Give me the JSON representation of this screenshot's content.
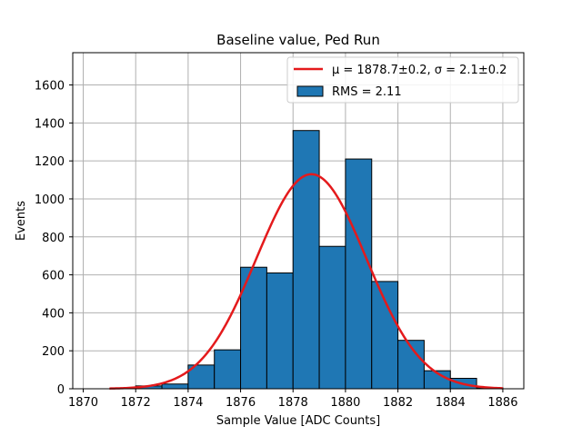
{
  "chart_data": {
    "type": "histogram",
    "title": "Baseline value, Ped Run",
    "xlabel": "Sample Value [ADC Counts]",
    "ylabel": "Events",
    "xlim": [
      1869.6,
      1886.8
    ],
    "ylim": [
      0,
      1770
    ],
    "grid": true,
    "x_ticks": [
      1870,
      1872,
      1874,
      1876,
      1878,
      1880,
      1882,
      1884,
      1886
    ],
    "y_ticks": [
      0,
      200,
      400,
      600,
      800,
      1000,
      1200,
      1400,
      1600
    ],
    "bar_color": "#1f77b4",
    "bar_edge_color": "#000000",
    "bins": [
      {
        "x0": 1872.0,
        "x1": 1873.0,
        "value": 15
      },
      {
        "x0": 1873.0,
        "x1": 1874.0,
        "value": 25
      },
      {
        "x0": 1874.0,
        "x1": 1875.0,
        "value": 125
      },
      {
        "x0": 1875.0,
        "x1": 1876.0,
        "value": 205
      },
      {
        "x0": 1876.0,
        "x1": 1877.0,
        "value": 640
      },
      {
        "x0": 1877.0,
        "x1": 1878.0,
        "value": 610
      },
      {
        "x0": 1878.0,
        "x1": 1879.0,
        "value": 1360
      },
      {
        "x0": 1879.0,
        "x1": 1880.0,
        "value": 750
      },
      {
        "x0": 1880.0,
        "x1": 1881.0,
        "value": 1210
      },
      {
        "x0": 1881.0,
        "x1": 1882.0,
        "value": 565
      },
      {
        "x0": 1882.0,
        "x1": 1883.0,
        "value": 255
      },
      {
        "x0": 1883.0,
        "x1": 1884.0,
        "value": 95
      },
      {
        "x0": 1884.0,
        "x1": 1885.0,
        "value": 55
      },
      {
        "x0": 1885.0,
        "x1": 1886.0,
        "value": 5
      }
    ],
    "fit": {
      "type": "gaussian",
      "mu": 1878.7,
      "sigma": 2.1,
      "amplitude": 1130,
      "x_range": [
        1871,
        1886
      ],
      "color": "#e41a1c"
    },
    "legend": {
      "position": "top-right",
      "entries": [
        {
          "kind": "line",
          "label": "μ = 1878.7±0.2, σ = 2.1±0.2"
        },
        {
          "kind": "patch",
          "label": "RMS = 2.11"
        }
      ]
    }
  }
}
